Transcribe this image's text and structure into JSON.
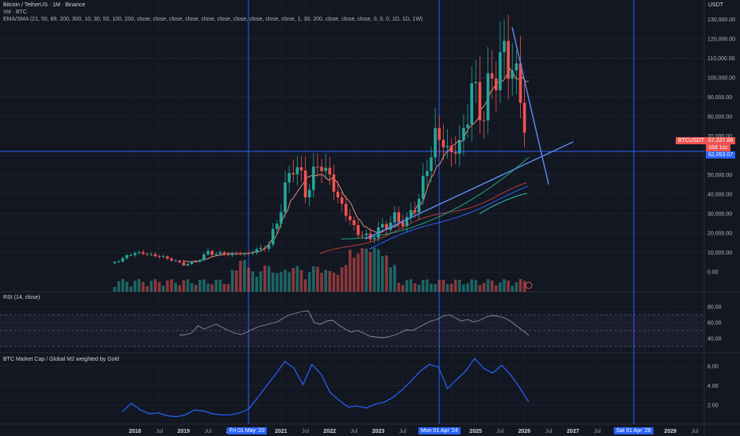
{
  "header": {
    "title": "Bitcoin / TetherUS · 1M · Binance",
    "volume": "Vol · BTC",
    "ema_sma": "EMA/SMA (21, 50, 89, 200, 300, 10, 30, 50, 100, 200, close, close, close, close, close, close, close, close, close, close, 1, 30, 200, close, close, close, 0, 0, 0, 1D, 1D, 1W)"
  },
  "currency": "USDT",
  "price_axis": [
    "130,000.00",
    "120,000.00",
    "110,000.00",
    "100,000.00",
    "90,000.00",
    "80,000.00",
    "70,000.00",
    "60,000.00",
    "50,000.00",
    "40,000.00",
    "30,000.00",
    "20,000.00",
    "10,000.00",
    "0.00"
  ],
  "price_tags": {
    "symbol": "BTCUSDT",
    "last_price": "67,337.88",
    "countdown": "16d 1cc",
    "crosshair_price": "62,053.07"
  },
  "rsi": {
    "title": "RSI (14, close)",
    "axis": [
      "80.00",
      "60.00",
      "40.00"
    ],
    "values": [
      44,
      45,
      47,
      56,
      52,
      55,
      58,
      54,
      50,
      47,
      45,
      48,
      52,
      55,
      57,
      59,
      61,
      66,
      70,
      72,
      74,
      75,
      60,
      58,
      62,
      63,
      57,
      52,
      48,
      50,
      47,
      43,
      42,
      41,
      42,
      44,
      47,
      51,
      50,
      54,
      58,
      62,
      64,
      68,
      70,
      66,
      62,
      64,
      61,
      63,
      67,
      69,
      68,
      66,
      62,
      56,
      50,
      44
    ]
  },
  "m2": {
    "title": "BTC Market Cap / Global M2 weighted by Gold",
    "axis": [
      "6.00",
      "4.00",
      "2.00"
    ],
    "values": [
      1.3,
      2.2,
      1.5,
      1.1,
      1.2,
      0.9,
      0.8,
      1.0,
      1.5,
      1.4,
      1.1,
      1.0,
      1.0,
      1.2,
      1.6,
      2.8,
      4.0,
      5.2,
      6.5,
      5.8,
      4.1,
      6.2,
      5.2,
      3.3,
      2.5,
      1.8,
      1.9,
      1.7,
      2.1,
      2.3,
      2.8,
      3.6,
      4.5,
      5.5,
      6.2,
      5.9,
      3.7,
      4.6,
      5.5,
      6.8,
      5.8,
      5.3,
      6.1,
      5.1,
      3.8,
      2.3
    ]
  },
  "time_axis": [
    "2018",
    "Jul",
    "2019",
    "Jul",
    "2020",
    "Jul",
    "2021",
    "Jul",
    "2022",
    "Jul",
    "2023",
    "Jul",
    "2024",
    "Jul",
    "2025",
    "Jul",
    "2026",
    "Jul",
    "2027",
    "Jul",
    "2028",
    "Jul",
    "2029",
    "Jul"
  ],
  "time_markers": [
    "Fri 01 May '20",
    "Mon 01 Apr '24",
    "Sat 01 Apr '28"
  ],
  "chart_data": {
    "type": "candlestick",
    "symbol": "BTCUSDT",
    "timeframe": "1M",
    "exchange": "Binance",
    "ylim": [
      0,
      135000
    ],
    "x": [
      "2017-08",
      "2018-01",
      "2018-04",
      "2018-07",
      "2018-10",
      "2019-01",
      "2019-04",
      "2019-07",
      "2019-10",
      "2020-01",
      "2020-05",
      "2020-10",
      "2021-01",
      "2021-04",
      "2021-07",
      "2021-11",
      "2022-02",
      "2022-05",
      "2022-08",
      "2022-11",
      "2023-02",
      "2023-05",
      "2023-08",
      "2023-11",
      "2024-02",
      "2024-03",
      "2024-06",
      "2024-09",
      "2024-12",
      "2025-03",
      "2025-06",
      "2025-08",
      "2025-10",
      "2025-12",
      "2026-02"
    ],
    "close": [
      5000,
      10000,
      9200,
      8000,
      6400,
      3700,
      5300,
      10000,
      9200,
      9300,
      9500,
      13800,
      33000,
      57800,
      41500,
      57000,
      43200,
      29700,
      20100,
      17200,
      23100,
      27200,
      26000,
      37700,
      61100,
      71300,
      62700,
      63300,
      93400,
      82500,
      107100,
      108300,
      109500,
      87500,
      67300
    ],
    "trendlines": {
      "descending": [
        [
          126000,
          "2025-10"
        ],
        [
          45000,
          "2026-07"
        ]
      ],
      "ascending": [
        [
          17000,
          "2023-01"
        ],
        [
          67000,
          "2026-12"
        ]
      ]
    },
    "horizontal_level": 62053.07
  },
  "colors": {
    "up": "#26a69a",
    "down": "#ef5350",
    "guide": "#2962ff",
    "trend": "#5b8dee",
    "rsi": "#8b8f9a",
    "rsi_band": "#7e57c2",
    "m2": "#2962ff",
    "ma_salmon": "#f7977a",
    "ma_red": "#b73a3a",
    "ma_green": "#20a67a",
    "ma_teal": "#2ec4a6",
    "ma_blue": "#2962ff"
  }
}
